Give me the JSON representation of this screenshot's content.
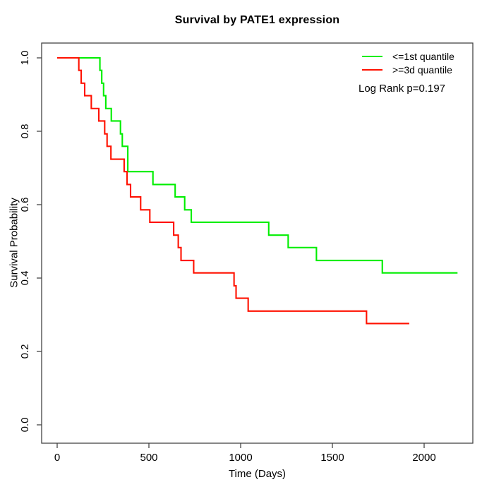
{
  "chart_data": {
    "type": "line",
    "variant": "kaplan-meier-step",
    "title": "Survival by PATE1 expression",
    "xlabel": "Time (Days)",
    "ylabel": "Survival Probability",
    "xticks": [
      0,
      500,
      1000,
      1500,
      2000
    ],
    "ytick_labels": [
      "0.0",
      "0.2",
      "0.4",
      "0.6",
      "0.8",
      "1.0"
    ],
    "xlim": [
      0,
      2000
    ],
    "ylim": [
      0,
      1
    ],
    "grid": false,
    "legend_position": "top-right",
    "legend": [
      {
        "label": "<=1st quantile",
        "color": "#00ee00"
      },
      {
        "label": ">=3d quantile",
        "color": "#ff1100"
      }
    ],
    "annotation": "Log Rank p=0.197",
    "axis_color": "#444444",
    "series": [
      {
        "name": "<=1st quantile",
        "color": "#00ee00",
        "points": [
          [
            0,
            1.0
          ],
          [
            233,
            0.966
          ],
          [
            243,
            0.931
          ],
          [
            253,
            0.897
          ],
          [
            265,
            0.862
          ],
          [
            295,
            0.828
          ],
          [
            345,
            0.793
          ],
          [
            355,
            0.759
          ],
          [
            385,
            0.69
          ],
          [
            522,
            0.655
          ],
          [
            643,
            0.621
          ],
          [
            695,
            0.586
          ],
          [
            731,
            0.552
          ],
          [
            1153,
            0.517
          ],
          [
            1259,
            0.483
          ],
          [
            1413,
            0.448
          ],
          [
            1772,
            0.414
          ],
          [
            2182,
            0.414
          ]
        ]
      },
      {
        "name": ">=3d quantile",
        "color": "#ff1100",
        "points": [
          [
            0,
            1.0
          ],
          [
            118,
            0.966
          ],
          [
            131,
            0.931
          ],
          [
            150,
            0.897
          ],
          [
            186,
            0.862
          ],
          [
            227,
            0.828
          ],
          [
            259,
            0.793
          ],
          [
            272,
            0.759
          ],
          [
            293,
            0.724
          ],
          [
            365,
            0.69
          ],
          [
            381,
            0.655
          ],
          [
            400,
            0.621
          ],
          [
            455,
            0.586
          ],
          [
            505,
            0.552
          ],
          [
            635,
            0.517
          ],
          [
            660,
            0.483
          ],
          [
            675,
            0.448
          ],
          [
            744,
            0.414
          ],
          [
            964,
            0.379
          ],
          [
            975,
            0.345
          ],
          [
            1041,
            0.31
          ],
          [
            1686,
            0.276
          ],
          [
            1919,
            0.276
          ]
        ]
      }
    ]
  }
}
